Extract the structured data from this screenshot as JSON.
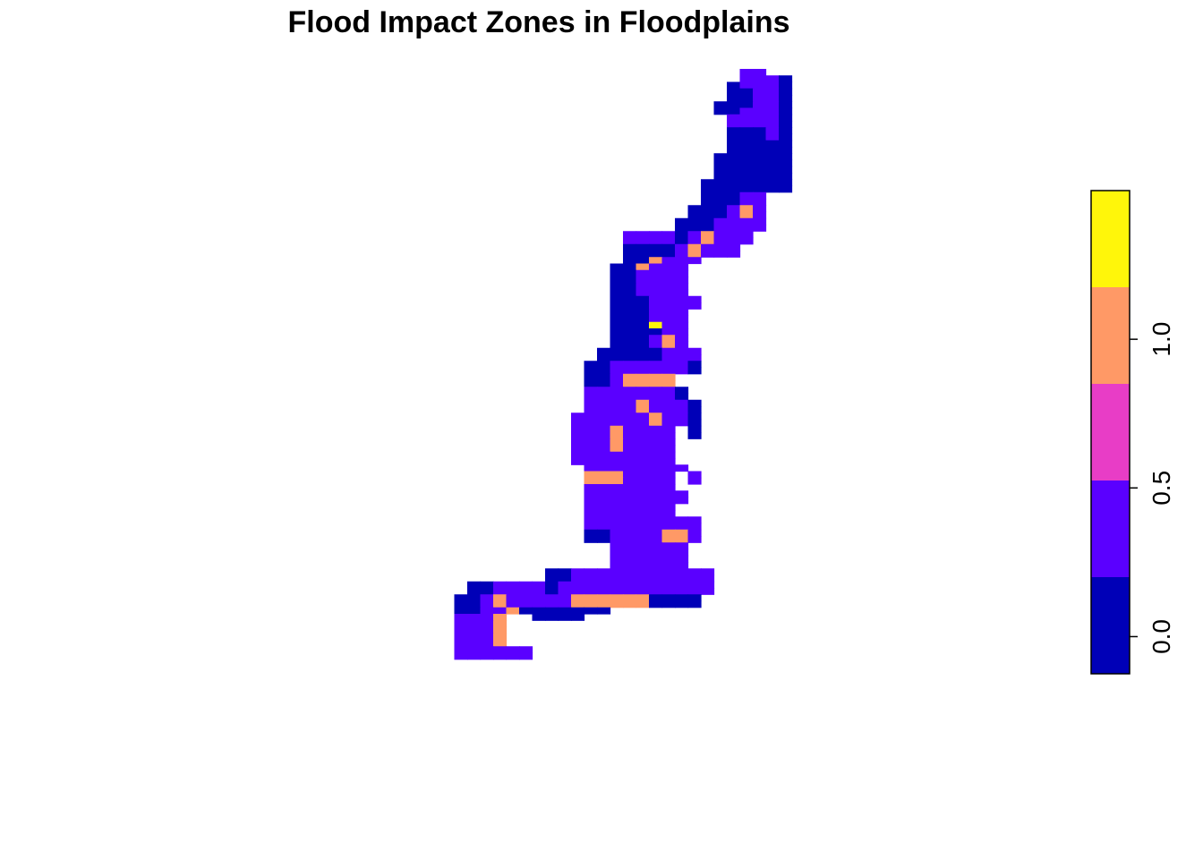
{
  "chart_data": {
    "type": "heatmap",
    "title": "Flood Impact Zones in Floodplains",
    "xlabel": "",
    "ylabel": "",
    "axes_visible": false,
    "grid": false,
    "legend": {
      "placement": "right",
      "kind": "color-bar",
      "range": [
        -0.125,
        1.5
      ],
      "ticks": [
        {
          "value": 0.0,
          "label": "0.0"
        },
        {
          "value": 0.5,
          "label": "0.5"
        },
        {
          "value": 1.0,
          "label": "1.0"
        }
      ],
      "bins": [
        {
          "from": -0.125,
          "to": 0.2,
          "color": "#0000B7"
        },
        {
          "from": 0.2,
          "to": 0.525,
          "color": "#5A00FF"
        },
        {
          "from": 0.525,
          "to": 0.85,
          "color": "#E83DC6"
        },
        {
          "from": 0.85,
          "to": 1.175,
          "color": "#FF9966"
        },
        {
          "from": 1.175,
          "to": 1.5,
          "color": "#FFF60A"
        }
      ]
    },
    "value_codes": {
      "0": 0.0,
      "1": 0.25,
      "2": 0.5,
      "3": 1.0,
      "4": 1.25
    },
    "grid_origin": {
      "col": 31,
      "row": 5
    },
    "rows": [
      "..........................xx..",
      "..........................2220",
      ".........................01220",
      ".........................00110",
      ".........................00110",
      "........................000220",
      "........................001220",
      ".........................22220",
      ".........................22220",
      ".........................00010",
      ".........................00010",
      ".........................00000",
      ".........................00000",
      "........................000000",
      "........................000000",
      "........................000000",
      "........................000000",
      ".......................0000000",
      ".......................0000000",
      ".......................00011..",
      ".......................00011..",
      "......................000232..",
      "......................000232..",
      ".....................0001222..",
      ".....................0001222..",
      ".................1111023222...",
      ".................1111023222...",
      ".................000023222....",
      ".................000023222....",
      ".................003222.......",
      "................003222........",
      "................001222........",
      "................001222........",
      "................001222........",
      "................001222........",
      "................0001222.......",
      "................0001222.......",
      "................000122........",
      "................000122........",
      "................000422........",
      "................000022........",
      "................000232........",
      "................000232........",
      "...............00000222.......",
      "...............00000222.......",
      "..............001222220.......",
      "..............001222220.......",
      "..............0023333.........",
      "..............0023333.........",
      "..............11222220........",
      "..............11222220........",
      "..............112232220.......",
      "..............112232220.......",
      ".............1122223220.......",
      ".............1122223220.......",
      ".............11232222.0.......",
      ".............11232222.0.......",
      ".............11232222.........",
      ".............11232222.........",
      ".............11222221.........",
      ".............11222221.........",
      "..............22222222........",
      "..............3332222.1.......",
      "..............3332222.1.......",
      "..............2222222.........",
      "..............11222221........",
      "..............11222221........",
      "..............2222222.........",
      "..............2222222.........",
      "..............222222222.......",
      "..............222222222.......",
      "..............002222332.......",
      "..............002222332.......",
      "................112222........",
      "................112222........",
      "................112222........",
      "................222222........",
      "...........0011111222222......",
      "...........0011111222222......",
      ".....0022220111111122222......",
      ".....0022220111111122222......",
      "....0023222223333330000.......",
      "....0023222223333330000.......",
      "....002230000000..............",
      "....2223..0000................",
      "....2223......................",
      "....2223......................",
      "....1123......................",
      "....1123......................",
      "....222222....................",
      "....222222...................."
    ]
  }
}
